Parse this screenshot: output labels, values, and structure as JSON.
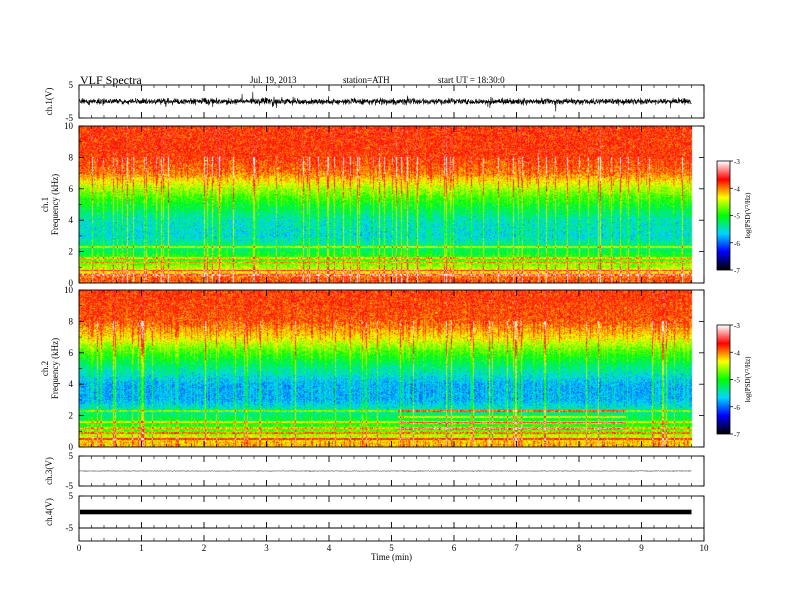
{
  "header": {
    "title": "VLF  Spectra",
    "date": "Jul.  19,  2013",
    "station": "station=ATH",
    "start": "start  UT  =    18:30:0"
  },
  "colors": {
    "spectrogram_scale": [
      "#000000",
      "#0000ff",
      "#00d7ff",
      "#00ff00",
      "#ffff00",
      "#ff0000",
      "#ffffff"
    ],
    "trace": "#000000"
  },
  "chart_data": [
    {
      "type": "line",
      "panel": "ch.1 waveform",
      "ylabel": "ch.1(V)",
      "ylim": [
        -5,
        5
      ],
      "ytick_labels": [
        "5",
        "-5"
      ],
      "xlim": [
        0,
        10
      ],
      "description_of_signal": "noisy broadband waveform, amplitude mostly within about +/-1.5 V with spikes to ~+/-3 V"
    },
    {
      "type": "heatmap",
      "panel": "ch.1 spectrogram",
      "ylabel_lines": [
        "ch.1",
        "Frequency  (kHz)"
      ],
      "ylim": [
        0,
        10
      ],
      "ytick_labels": [
        "10",
        "8",
        "6",
        "4",
        "2",
        "0"
      ],
      "xlim": [
        0,
        10
      ],
      "data_end_min": 9.8,
      "colorbar": {
        "label": "log(PSD(V²/Hz)",
        "range": [
          -7,
          -3
        ],
        "tick_labels": [
          "-3",
          "-4",
          "-5",
          "-6",
          "-7"
        ]
      },
      "level_profile": [
        {
          "freq_khz": 0.3,
          "log_psd": -3.9
        },
        {
          "freq_khz": 1.0,
          "log_psd": -4.6
        },
        {
          "freq_khz": 2.0,
          "log_psd": -5.2
        },
        {
          "freq_khz": 3.0,
          "log_psd": -5.6
        },
        {
          "freq_khz": 4.0,
          "log_psd": -5.5
        },
        {
          "freq_khz": 5.0,
          "log_psd": -5.1
        },
        {
          "freq_khz": 6.0,
          "log_psd": -4.6
        },
        {
          "freq_khz": 7.0,
          "log_psd": -4.0
        },
        {
          "freq_khz": 8.0,
          "log_psd": -3.8
        },
        {
          "freq_khz": 10.0,
          "log_psd": -3.8
        }
      ],
      "tone_lines_khz": [
        0.5,
        0.8,
        1.3,
        1.6,
        2.3
      ]
    },
    {
      "type": "heatmap",
      "panel": "ch.2 spectrogram",
      "ylabel_lines": [
        "ch.2",
        "Frequency  (kHz)"
      ],
      "ylim": [
        0,
        10
      ],
      "ytick_labels": [
        "10",
        "8",
        "6",
        "4",
        "2",
        "0"
      ],
      "xlim": [
        0,
        10
      ],
      "data_end_min": 9.8,
      "colorbar": {
        "label": "log(PSD(V²/Hz)",
        "range": [
          -7,
          -3
        ],
        "tick_labels": [
          "-3",
          "-4",
          "-5",
          "-6",
          "-7"
        ]
      },
      "level_profile": [
        {
          "freq_khz": 0.3,
          "log_psd": -4.2
        },
        {
          "freq_khz": 1.0,
          "log_psd": -4.8
        },
        {
          "freq_khz": 2.0,
          "log_psd": -5.3
        },
        {
          "freq_khz": 3.0,
          "log_psd": -5.8
        },
        {
          "freq_khz": 4.0,
          "log_psd": -5.8
        },
        {
          "freq_khz": 5.0,
          "log_psd": -5.4
        },
        {
          "freq_khz": 6.0,
          "log_psd": -4.9
        },
        {
          "freq_khz": 7.0,
          "log_psd": -4.3
        },
        {
          "freq_khz": 8.0,
          "log_psd": -3.9
        },
        {
          "freq_khz": 10.0,
          "log_psd": -3.8
        }
      ],
      "tone_lines_khz": [
        0.5,
        0.9,
        1.2,
        1.6,
        2.3
      ],
      "band_interval": {
        "t_min": 5.1,
        "t_max": 8.75,
        "freq_khz": [
          1.0,
          2.4
        ]
      }
    },
    {
      "type": "line",
      "panel": "ch.3 waveform",
      "ylabel": "ch.3(V)",
      "ylim": [
        -5,
        5
      ],
      "ytick_labels": [
        "5",
        "-5"
      ],
      "xlim": [
        0,
        10
      ],
      "description_of_signal": "nearly flat trace near 0 V with small noise"
    },
    {
      "type": "line",
      "panel": "ch.4 waveform",
      "ylabel": "ch.4(V)",
      "ylim": [
        -5,
        5
      ],
      "ytick_labels": [
        "5",
        "-5"
      ],
      "xlim": [
        0,
        10
      ],
      "description_of_signal": "thick flat band centered near 0 V"
    }
  ],
  "x_axis": {
    "label": "Time  (min)",
    "tick_labels": [
      "0",
      "1",
      "2",
      "3",
      "4",
      "5",
      "6",
      "7",
      "8",
      "9",
      "10"
    ]
  }
}
